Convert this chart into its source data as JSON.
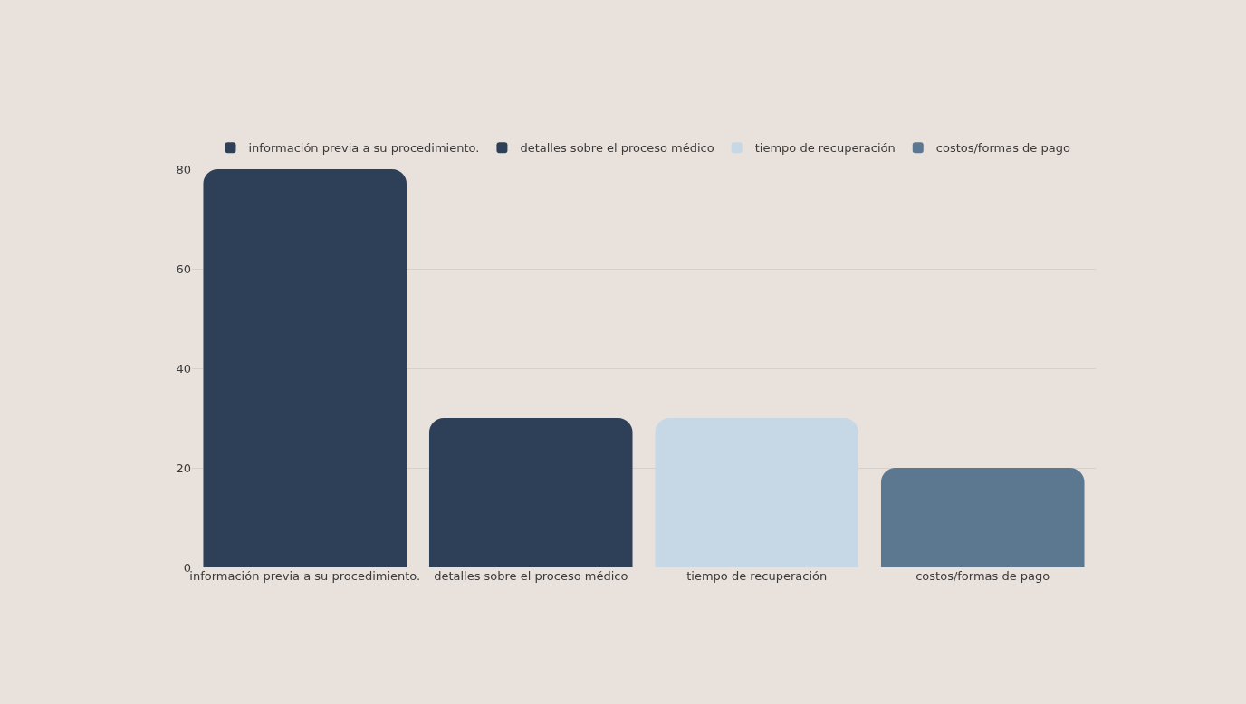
{
  "chart_data": {
    "type": "bar",
    "categories": [
      "información previa a su procedimiento.",
      "detalles sobre el proceso médico",
      "tiempo de recuperación",
      "costos/formas de pago"
    ],
    "series": [
      {
        "name": "información previa a su procedimiento.",
        "color": "#2e4058",
        "values": [
          80,
          null,
          null,
          null
        ]
      },
      {
        "name": "detalles sobre el proceso médico",
        "color": "#2e4058",
        "values": [
          null,
          30,
          null,
          null
        ]
      },
      {
        "name": "tiempo de recuperación",
        "color": "#c6d7e5",
        "values": [
          null,
          null,
          30,
          null
        ]
      },
      {
        "name": "costos/formas de pago",
        "color": "#5c7890",
        "values": [
          null,
          null,
          null,
          20
        ]
      }
    ],
    "stacked": true,
    "ylim": [
      0,
      80
    ],
    "yticks": [
      0,
      20,
      40,
      60,
      80
    ],
    "grid": "y",
    "legend": "top"
  }
}
